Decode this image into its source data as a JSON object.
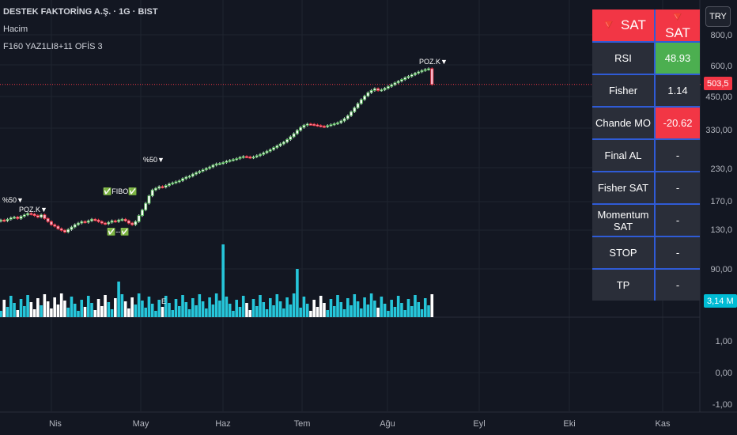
{
  "header": {
    "title": "DESTEK FAKTORİNG A.Ş. · 1G · BIST",
    "volume_label": "Hacim",
    "indicator_label": "F160 YAZ1LI8+11 OFİS 3"
  },
  "currency_button": "TRY",
  "last_price_label": "503,5",
  "volume_value_label": "3,14 M",
  "table": {
    "header": [
      "🔻 SAT",
      "🔻 SAT"
    ],
    "rows": [
      {
        "label": "RSI",
        "value": "48.93",
        "state": "green"
      },
      {
        "label": "Fisher",
        "value": "1.14",
        "state": "neutral"
      },
      {
        "label": "Chande MO",
        "value": "-20.62",
        "state": "red"
      },
      {
        "label": "Final AL",
        "value": "-",
        "state": "neutral"
      },
      {
        "label": "Fisher SAT",
        "value": "-",
        "state": "neutral"
      },
      {
        "label": "Momentum SAT",
        "value": "-",
        "state": "neutral"
      },
      {
        "label": "STOP",
        "value": "-",
        "state": "neutral"
      },
      {
        "label": "TP",
        "value": "-",
        "state": "neutral"
      }
    ]
  },
  "colors": {
    "background": "#131722",
    "up": "#4caf50",
    "down": "#f23645",
    "volume_up": "#26c6da",
    "volume_down": "#ffffff",
    "grid": "#1f2430",
    "table_border": "#2f5bd6"
  },
  "chart_data": {
    "type": "candlestick",
    "scale": "log",
    "price_axis_ticks": [
      "800,0",
      "600,0",
      "450,00",
      "330,00",
      "230,0",
      "170,0",
      "130,0",
      "90,00"
    ],
    "price_axis_values": [
      800,
      600,
      450,
      330,
      230,
      170,
      130,
      90
    ],
    "indicator_axis_ticks": [
      "1,00",
      "0,00",
      "-1,00"
    ],
    "indicator_axis_values": [
      1,
      0,
      -1
    ],
    "x_ticks": [
      "Nis",
      "May",
      "Haz",
      "Tem",
      "Ağu",
      "Eyl",
      "Eki",
      "Kas"
    ],
    "last_price": 503.5,
    "closes": [
      142,
      141,
      143,
      145,
      146,
      144,
      147,
      149,
      151,
      150,
      148,
      146,
      149,
      144,
      140,
      136,
      134,
      131,
      129,
      127,
      130,
      133,
      136,
      138,
      140,
      139,
      141,
      143,
      142,
      140,
      138,
      137,
      139,
      141,
      140,
      142,
      143,
      141,
      138,
      136,
      140,
      148,
      156,
      166,
      178,
      188,
      191,
      194,
      193,
      196,
      199,
      201,
      203,
      205,
      209,
      212,
      214,
      218,
      221,
      224,
      227,
      230,
      233,
      237,
      240,
      241,
      243,
      246,
      248,
      250,
      252,
      255,
      257,
      256,
      254,
      256,
      259,
      262,
      266,
      270,
      274,
      279,
      284,
      289,
      294,
      301,
      309,
      318,
      328,
      337,
      344,
      348,
      347,
      345,
      343,
      341,
      339,
      343,
      346,
      349,
      352,
      358,
      366,
      376,
      390,
      405,
      421,
      437,
      452,
      466,
      476,
      484,
      476,
      479,
      486,
      494,
      502,
      511,
      519,
      527,
      536,
      543,
      551,
      559,
      566,
      573,
      579,
      583,
      503.5
    ],
    "volume_max_label": "3,14 M",
    "annotations": [
      "%50▼",
      "POZ.K▼",
      "✅FIBO✅",
      "✅--✅",
      "%50▼",
      "POZ.K▼",
      "E"
    ]
  }
}
